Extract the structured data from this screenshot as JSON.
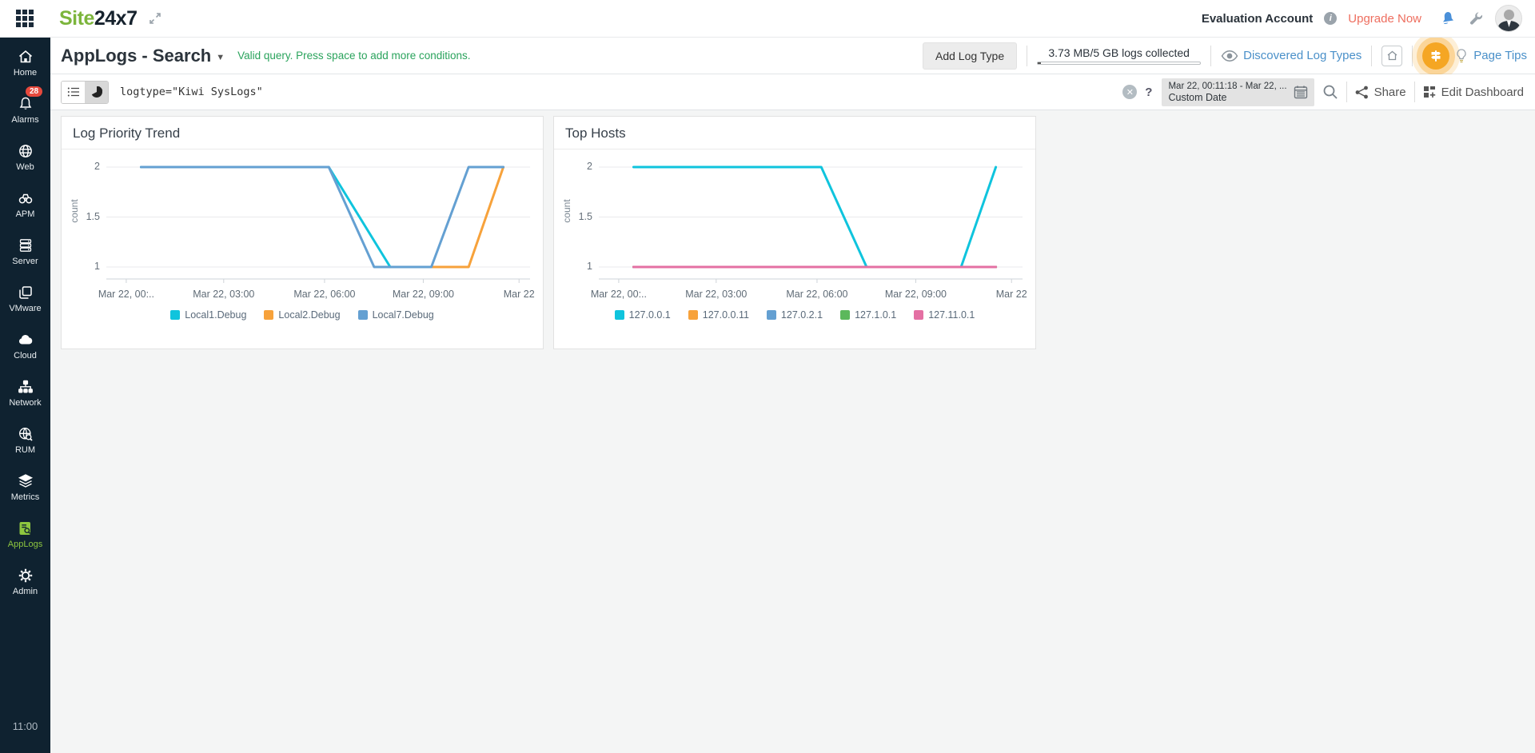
{
  "topbar": {
    "logo_site": "Site",
    "logo_247": "24x7",
    "account_label": "Evaluation Account",
    "upgrade_label": "Upgrade Now"
  },
  "sidebar": {
    "items": [
      {
        "label": "Home",
        "icon": "home-icon"
      },
      {
        "label": "Alarms",
        "icon": "bell-icon",
        "badge": "28"
      },
      {
        "label": "Web",
        "icon": "globe-icon"
      },
      {
        "label": "APM",
        "icon": "binoculars-icon"
      },
      {
        "label": "Server",
        "icon": "server-icon"
      },
      {
        "label": "VMware",
        "icon": "vmware-icon"
      },
      {
        "label": "Cloud",
        "icon": "cloud-icon"
      },
      {
        "label": "Network",
        "icon": "network-icon"
      },
      {
        "label": "RUM",
        "icon": "rum-globe-icon"
      },
      {
        "label": "Metrics",
        "icon": "layers-icon"
      },
      {
        "label": "AppLogs",
        "icon": "applogs-icon",
        "active": true
      },
      {
        "label": "Admin",
        "icon": "gear-icon"
      }
    ],
    "clock": "11:00"
  },
  "page_header": {
    "title": "AppLogs - Search",
    "query_hint": "Valid query. Press space to add more conditions.",
    "add_log_type_label": "Add Log Type",
    "usage_label": "3.73 MB/5 GB logs collected",
    "discovered_label": "Discovered Log Types",
    "page_tips_label": "Page Tips"
  },
  "toolbar": {
    "query_value": "logtype=\"Kiwi SysLogs\"",
    "help_label": "?",
    "date_range": "Mar 22, 00:11:18 - Mar 22, ...",
    "date_mode": "Custom Date",
    "share_label": "Share",
    "edit_dashboard_label": "Edit Dashboard"
  },
  "colors": {
    "brand_green": "#7cb53c",
    "sidebar_bg": "#0f2230",
    "applogs_active_green": "#8dc63f",
    "link_blue": "#4a90c9",
    "valid_query_green": "#2aa35c",
    "upgrade_red": "#ee6e5f",
    "badge_red": "#e6493d",
    "page_tips_orange": "#f5a623"
  },
  "chart_data": [
    {
      "type": "line",
      "title": "Log Priority Trend",
      "ylabel": "count",
      "ylim": [
        1,
        2
      ],
      "yticks": [
        2,
        1.5,
        1
      ],
      "grid": true,
      "legend_position": "bottom",
      "xticks": [
        {
          "label": "Mar 22, 00:..",
          "f": 0.047
        },
        {
          "label": "Mar 22, 03:00",
          "f": 0.277
        },
        {
          "label": "Mar 22, 06:00",
          "f": 0.515
        },
        {
          "label": "Mar 22, 09:00",
          "f": 0.748
        },
        {
          "label": "Mar 22",
          "f": 0.974
        }
      ],
      "x_is_time": "Mar 22, 00:11:18 to Mar 22, ~12:00 (count of logs per priority over time)",
      "series": [
        {
          "name": "Local1.Debug",
          "color": "#0fc4dd",
          "z": 1,
          "points": [
            [
              0.082,
              2
            ],
            [
              0.525,
              2
            ],
            [
              0.67,
              1
            ]
          ]
        },
        {
          "name": "Local2.Debug",
          "color": "#f7a23b",
          "z": 2,
          "points": [
            [
              0.67,
              1
            ],
            [
              0.855,
              1
            ],
            [
              0.937,
              2
            ]
          ]
        },
        {
          "name": "Local7.Debug",
          "color": "#64a0d2",
          "z": 3,
          "points": [
            [
              0.082,
              2
            ],
            [
              0.525,
              2
            ],
            [
              0.632,
              1
            ],
            [
              0.767,
              1
            ],
            [
              0.855,
              2
            ],
            [
              0.937,
              2
            ]
          ]
        }
      ]
    },
    {
      "type": "line",
      "title": "Top Hosts",
      "ylabel": "count",
      "ylim": [
        1,
        2
      ],
      "yticks": [
        2,
        1.5,
        1
      ],
      "grid": true,
      "legend_position": "bottom",
      "xticks": [
        {
          "label": "Mar 22, 00:..",
          "f": 0.047
        },
        {
          "label": "Mar 22, 03:00",
          "f": 0.277
        },
        {
          "label": "Mar 22, 06:00",
          "f": 0.515
        },
        {
          "label": "Mar 22, 09:00",
          "f": 0.748
        },
        {
          "label": "Mar 22",
          "f": 0.974
        }
      ],
      "x_is_time": "Mar 22, 00:11:18 to Mar 22, ~12:00 (log count per host over time)",
      "series": [
        {
          "name": "127.0.0.1",
          "color": "#0fc4dd",
          "z": 4,
          "points": [
            [
              0.082,
              2
            ],
            [
              0.525,
              2
            ],
            [
              0.632,
              1
            ],
            [
              0.855,
              1
            ],
            [
              0.937,
              2
            ]
          ]
        },
        {
          "name": "127.0.0.11",
          "color": "#f7a23b",
          "z": 1,
          "points": [
            [
              0.082,
              1
            ],
            [
              0.937,
              1
            ]
          ]
        },
        {
          "name": "127.0.2.1",
          "color": "#64a0d2",
          "z": 2,
          "points": [
            [
              0.082,
              1
            ],
            [
              0.937,
              1
            ]
          ]
        },
        {
          "name": "127.1.0.1",
          "color": "#5cb85c",
          "z": 3,
          "points": [
            [
              0.082,
              1
            ],
            [
              0.937,
              1
            ]
          ]
        },
        {
          "name": "127.11.0.1",
          "color": "#e470a3",
          "z": 5,
          "points": [
            [
              0.082,
              1
            ],
            [
              0.937,
              1
            ]
          ]
        }
      ]
    }
  ]
}
